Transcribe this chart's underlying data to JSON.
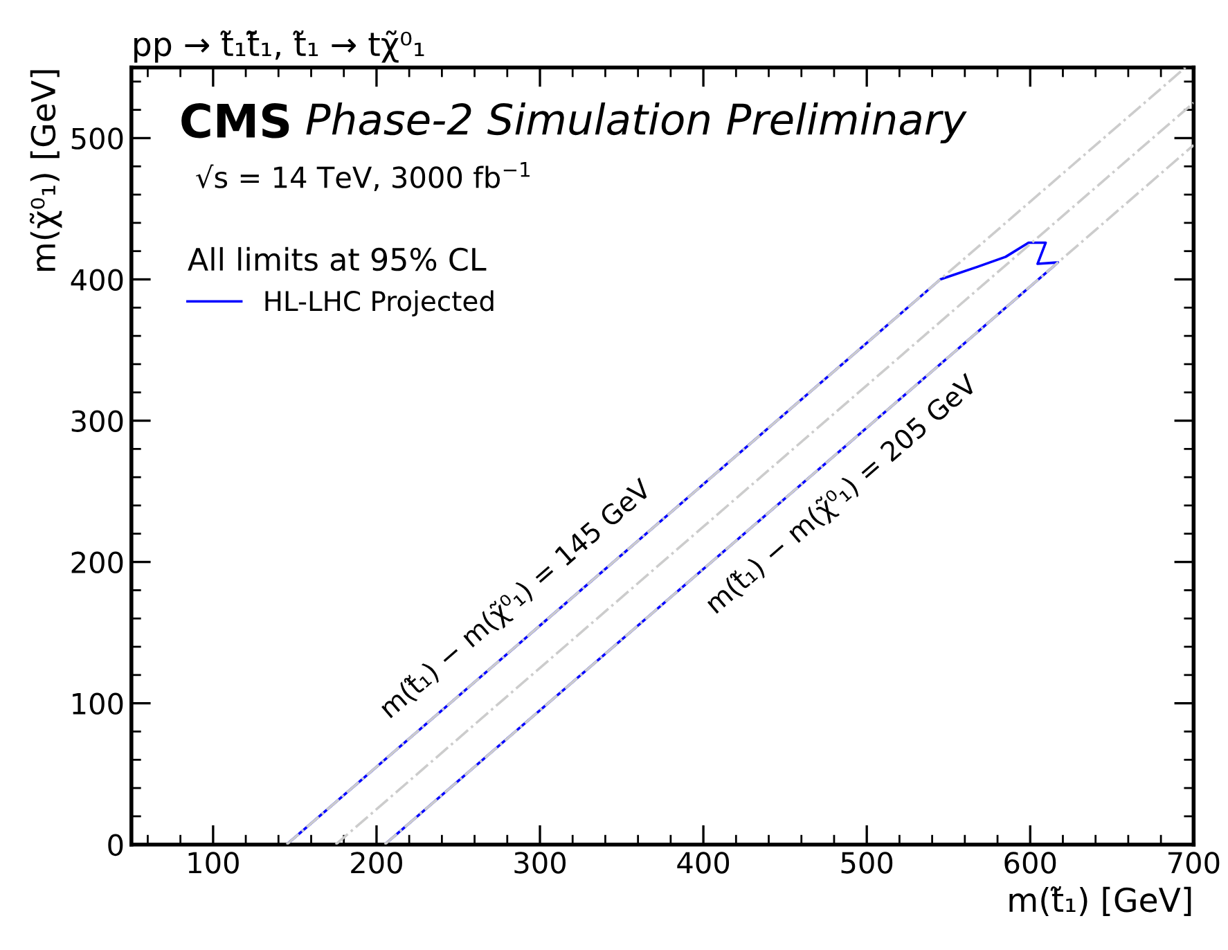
{
  "chart_data": {
    "type": "line",
    "title": "pp → t̃₁t̃̄₁, t̃₁ → tχ̃⁰₁",
    "xlabel": "m(t̃₁) [GeV]",
    "ylabel": "m(χ̃⁰₁) [GeV]",
    "legend_title": "All limits at 95% CL",
    "series": [
      {
        "name": "HL-LHC Projected",
        "color": "#0000ff",
        "line_style": "solid",
        "x": [
          145,
          545,
          568,
          585,
          599,
          609.5,
          604.5,
          617,
          205
        ],
        "values": [
          0,
          400,
          409,
          416,
          426,
          426,
          411,
          412,
          0
        ]
      },
      {
        "color": "#cccccc",
        "line_style": "dashdot",
        "x": [
          145,
          695
        ],
        "values": [
          0,
          550
        ]
      },
      {
        "color": "#cccccc",
        "line_style": "dashdot",
        "x": [
          175,
          700
        ],
        "values": [
          0,
          525
        ]
      },
      {
        "color": "#cccccc",
        "line_style": "dashdot",
        "x": [
          205,
          700
        ],
        "values": [
          0,
          495
        ]
      }
    ],
    "annotations": [
      "CMS",
      "Phase-2 Simulation Preliminary",
      "√s = 14 TeV, 3000 fb$^{−1}$",
      {
        "text": "m(t̃₁) − m(χ̃⁰₁) = 145 GeV",
        "x": 300,
        "y": 155
      },
      {
        "text": "m(t̃₁) − m(χ̃⁰₁) = 205 GeV",
        "x": 470,
        "y": 265
      }
    ],
    "xlim": [
      50,
      700
    ],
    "xticks": [
      100,
      200,
      300,
      400,
      500,
      600,
      700
    ],
    "ylim": [
      0,
      550
    ],
    "yticks": [
      0,
      100,
      200,
      300,
      400,
      500
    ],
    "grid": false,
    "legend": "top left",
    "marker": "none"
  }
}
